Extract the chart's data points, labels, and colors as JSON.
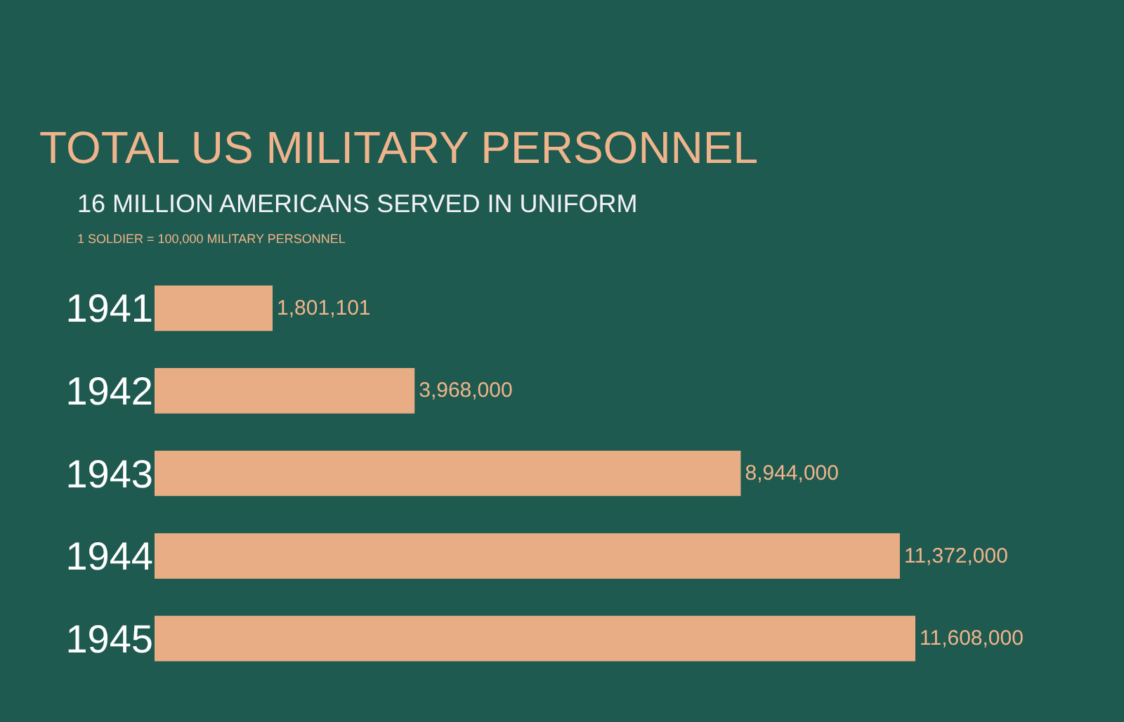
{
  "chart_data": {
    "type": "bar",
    "orientation": "horizontal",
    "title": "TOTAL US MILITARY PERSONNEL",
    "subtitle": "16 MILLION AMERICANS SERVED IN UNIFORM",
    "annotations": [
      "1 SOLDIER = 100,000 MILITARY PERSONNEL"
    ],
    "categories": [
      "1941",
      "1942",
      "1943",
      "1944",
      "1945"
    ],
    "values": [
      1801101,
      3968000,
      8944000,
      11372000,
      11608000
    ],
    "value_labels": [
      "1,801,101",
      "3,968,000",
      "8,944,000",
      "11,372,000",
      "11,608,000"
    ],
    "color": "#e8ad85"
  }
}
